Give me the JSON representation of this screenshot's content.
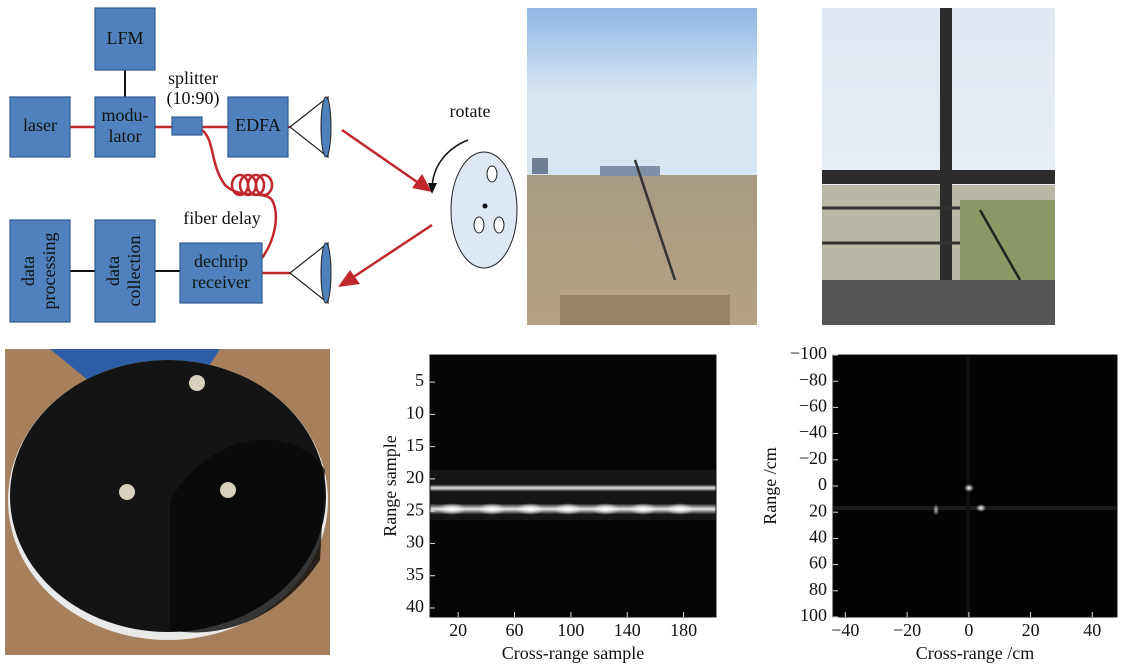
{
  "diagram": {
    "lfm": "LFM",
    "laser": "laser",
    "modulator": [
      "modu-",
      "lator"
    ],
    "splitter": [
      "splitter",
      "(10:90)"
    ],
    "edfa": "EDFA",
    "fiber_delay": "fiber delay",
    "data_processing": [
      "data",
      "processing"
    ],
    "data_collection": [
      "data",
      "collection"
    ],
    "receiver": [
      "dechrip",
      "receiver"
    ],
    "rotate": "rotate"
  },
  "plots": [
    {
      "ylabel": "Range sample",
      "xlabel": "Cross-range sample",
      "xlim": [
        0,
        203
      ],
      "ylim": [
        0.8,
        41.4
      ],
      "y_inverted": true,
      "xticks": [
        20,
        60,
        100,
        140,
        180
      ],
      "yticks": [
        5,
        10,
        15,
        20,
        25,
        30,
        35,
        40
      ]
    },
    {
      "ylabel": "Range /cm",
      "xlabel": "Cross-range /cm",
      "xlim": [
        -44,
        48
      ],
      "ylim": [
        -100,
        100
      ],
      "y_inverted": true,
      "xticks": [
        {
          "value": -40,
          "label": "−40"
        },
        {
          "value": -20,
          "label": "−20"
        },
        0,
        20,
        40
      ],
      "yticks": [
        {
          "value": -100,
          "label": "−100"
        },
        {
          "value": -80,
          "label": "−80"
        },
        {
          "value": -60,
          "label": "−60"
        },
        {
          "value": -40,
          "label": "−40"
        },
        {
          "value": -20,
          "label": "−20"
        },
        0,
        20,
        40,
        60,
        80,
        100
      ]
    }
  ]
}
